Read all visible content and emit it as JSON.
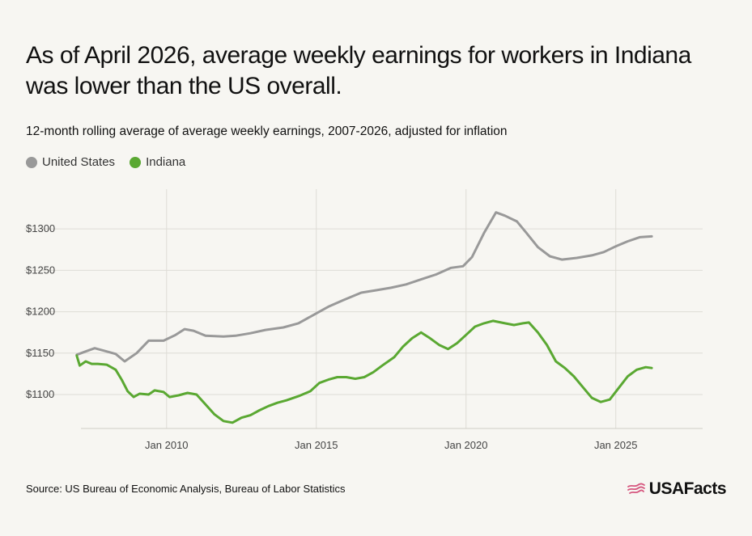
{
  "title": "As of April 2026, average weekly earnings for workers in Indiana was lower than the US overall.",
  "subtitle": "12-month rolling average of average weekly earnings, 2007-2026, adjusted for inflation",
  "legend": [
    {
      "label": "United States",
      "color": "#999999"
    },
    {
      "label": "Indiana",
      "color": "#5aa832"
    }
  ],
  "source": "Source: US Bureau of Economic Analysis, Bureau of Labor Statistics",
  "logo": {
    "text": "USAFacts",
    "icon": "usa-flag-icon",
    "icon_color": "#d6577f"
  },
  "chart_data": {
    "type": "line",
    "title": "12-month rolling average of average weekly earnings, 2007-2026, adjusted for inflation",
    "xlabel": "",
    "ylabel": "",
    "x_ticks": [
      {
        "label": "Jan 2010",
        "value": 2010.0
      },
      {
        "label": "Jan 2015",
        "value": 2015.0
      },
      {
        "label": "Jan 2020",
        "value": 2020.0
      },
      {
        "label": "Jan 2025",
        "value": 2025.0
      }
    ],
    "y_ticks": [
      {
        "label": "$1100",
        "value": 1100
      },
      {
        "label": "$1150",
        "value": 1150
      },
      {
        "label": "$1200",
        "value": 1200
      },
      {
        "label": "$1250",
        "value": 1250
      },
      {
        "label": "$1300",
        "value": 1300
      }
    ],
    "xlim": [
      2006.6,
      2027.9
    ],
    "ylim": [
      1059,
      1348
    ],
    "grid": true,
    "legend_position": "top-left",
    "series": [
      {
        "name": "United States",
        "color": "#999999",
        "points": [
          [
            2007.0,
            1148
          ],
          [
            2007.3,
            1152
          ],
          [
            2007.6,
            1156
          ],
          [
            2007.9,
            1153
          ],
          [
            2008.3,
            1149
          ],
          [
            2008.6,
            1140
          ],
          [
            2009.0,
            1150
          ],
          [
            2009.4,
            1165
          ],
          [
            2009.9,
            1165
          ],
          [
            2010.3,
            1172
          ],
          [
            2010.6,
            1179
          ],
          [
            2010.9,
            1177
          ],
          [
            2011.3,
            1171
          ],
          [
            2011.9,
            1170
          ],
          [
            2012.3,
            1171
          ],
          [
            2012.8,
            1174
          ],
          [
            2013.3,
            1178
          ],
          [
            2013.9,
            1181
          ],
          [
            2014.4,
            1186
          ],
          [
            2014.9,
            1196
          ],
          [
            2015.4,
            1206
          ],
          [
            2015.9,
            1214
          ],
          [
            2016.5,
            1223
          ],
          [
            2017.0,
            1226
          ],
          [
            2017.5,
            1229
          ],
          [
            2018.0,
            1233
          ],
          [
            2018.5,
            1239
          ],
          [
            2019.0,
            1245
          ],
          [
            2019.5,
            1253
          ],
          [
            2019.9,
            1255
          ],
          [
            2020.2,
            1266
          ],
          [
            2020.6,
            1295
          ],
          [
            2021.0,
            1320
          ],
          [
            2021.3,
            1316
          ],
          [
            2021.7,
            1309
          ],
          [
            2022.0,
            1296
          ],
          [
            2022.4,
            1278
          ],
          [
            2022.8,
            1267
          ],
          [
            2023.2,
            1263
          ],
          [
            2023.7,
            1265
          ],
          [
            2024.2,
            1268
          ],
          [
            2024.6,
            1272
          ],
          [
            2025.0,
            1279
          ],
          [
            2025.4,
            1285
          ],
          [
            2025.8,
            1290
          ],
          [
            2026.2,
            1291
          ]
        ]
      },
      {
        "name": "Indiana",
        "color": "#5aa832",
        "points": [
          [
            2007.0,
            1147
          ],
          [
            2007.1,
            1135
          ],
          [
            2007.3,
            1140
          ],
          [
            2007.5,
            1137
          ],
          [
            2007.7,
            1137
          ],
          [
            2008.0,
            1136
          ],
          [
            2008.3,
            1130
          ],
          [
            2008.5,
            1118
          ],
          [
            2008.7,
            1104
          ],
          [
            2008.9,
            1097
          ],
          [
            2009.1,
            1101
          ],
          [
            2009.4,
            1100
          ],
          [
            2009.6,
            1105
          ],
          [
            2009.9,
            1103
          ],
          [
            2010.1,
            1097
          ],
          [
            2010.4,
            1099
          ],
          [
            2010.7,
            1102
          ],
          [
            2011.0,
            1100
          ],
          [
            2011.3,
            1088
          ],
          [
            2011.6,
            1076
          ],
          [
            2011.9,
            1068
          ],
          [
            2012.2,
            1066
          ],
          [
            2012.5,
            1072
          ],
          [
            2012.8,
            1075
          ],
          [
            2013.1,
            1081
          ],
          [
            2013.4,
            1086
          ],
          [
            2013.7,
            1090
          ],
          [
            2014.0,
            1093
          ],
          [
            2014.4,
            1098
          ],
          [
            2014.8,
            1104
          ],
          [
            2015.1,
            1114
          ],
          [
            2015.4,
            1118
          ],
          [
            2015.7,
            1121
          ],
          [
            2016.0,
            1121
          ],
          [
            2016.3,
            1119
          ],
          [
            2016.6,
            1121
          ],
          [
            2016.9,
            1127
          ],
          [
            2017.2,
            1135
          ],
          [
            2017.6,
            1145
          ],
          [
            2017.9,
            1158
          ],
          [
            2018.2,
            1168
          ],
          [
            2018.5,
            1175
          ],
          [
            2018.8,
            1168
          ],
          [
            2019.1,
            1160
          ],
          [
            2019.4,
            1155
          ],
          [
            2019.7,
            1162
          ],
          [
            2020.0,
            1172
          ],
          [
            2020.3,
            1182
          ],
          [
            2020.6,
            1186
          ],
          [
            2020.9,
            1189
          ],
          [
            2021.3,
            1186
          ],
          [
            2021.6,
            1184
          ],
          [
            2021.9,
            1186
          ],
          [
            2022.1,
            1187
          ],
          [
            2022.4,
            1175
          ],
          [
            2022.7,
            1160
          ],
          [
            2023.0,
            1140
          ],
          [
            2023.3,
            1132
          ],
          [
            2023.6,
            1122
          ],
          [
            2023.9,
            1109
          ],
          [
            2024.2,
            1096
          ],
          [
            2024.5,
            1091
          ],
          [
            2024.8,
            1094
          ],
          [
            2025.1,
            1108
          ],
          [
            2025.4,
            1122
          ],
          [
            2025.7,
            1130
          ],
          [
            2026.0,
            1133
          ],
          [
            2026.2,
            1132
          ]
        ]
      }
    ]
  }
}
